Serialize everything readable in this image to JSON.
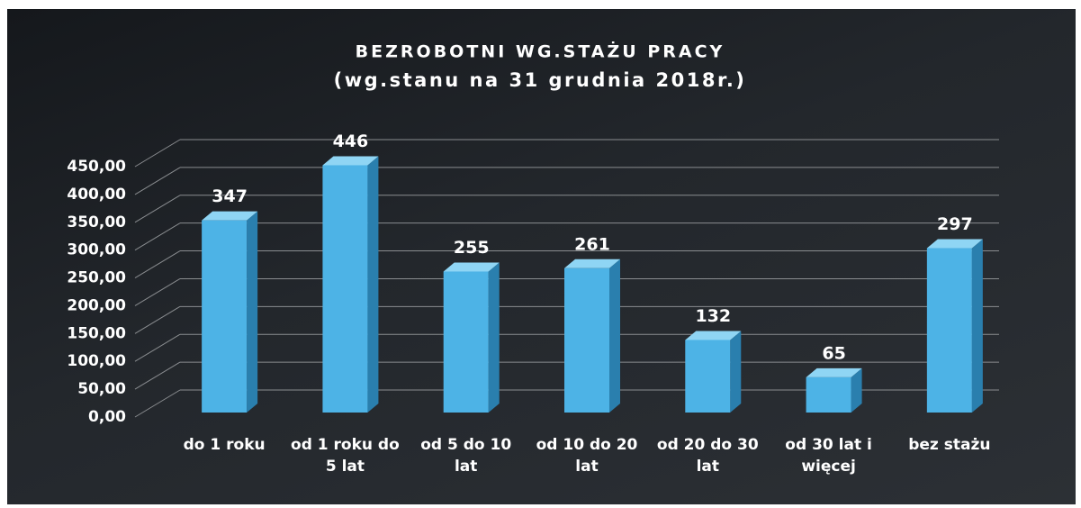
{
  "chart_data": {
    "type": "bar",
    "title": "BEZROBOTNI WG.STAŻU PRACY",
    "subtitle": "(wg.stanu na 31 grudnia 2018r.)",
    "categories": [
      "do 1 roku",
      "od 1 roku do 5 lat",
      "od 5 do 10 lat",
      "od 10 do 20 lat",
      "od 20 do 30 lat",
      "od 30 lat i więcej",
      "bez stażu"
    ],
    "values": [
      347,
      446,
      255,
      261,
      132,
      65,
      297
    ],
    "color": "#4db3e6",
    "ylim": [
      0,
      450
    ],
    "yticks": [
      {
        "value": 0,
        "label": "0,00"
      },
      {
        "value": 50,
        "label": "50,00"
      },
      {
        "value": 100,
        "label": "100,00"
      },
      {
        "value": 150,
        "label": "150,00"
      },
      {
        "value": 200,
        "label": "200,00"
      },
      {
        "value": 250,
        "label": "250,00"
      },
      {
        "value": 300,
        "label": "300,00"
      },
      {
        "value": 350,
        "label": "350,00"
      },
      {
        "value": 400,
        "label": "400,00"
      },
      {
        "value": 450,
        "label": "450,00"
      }
    ],
    "grid": true
  }
}
